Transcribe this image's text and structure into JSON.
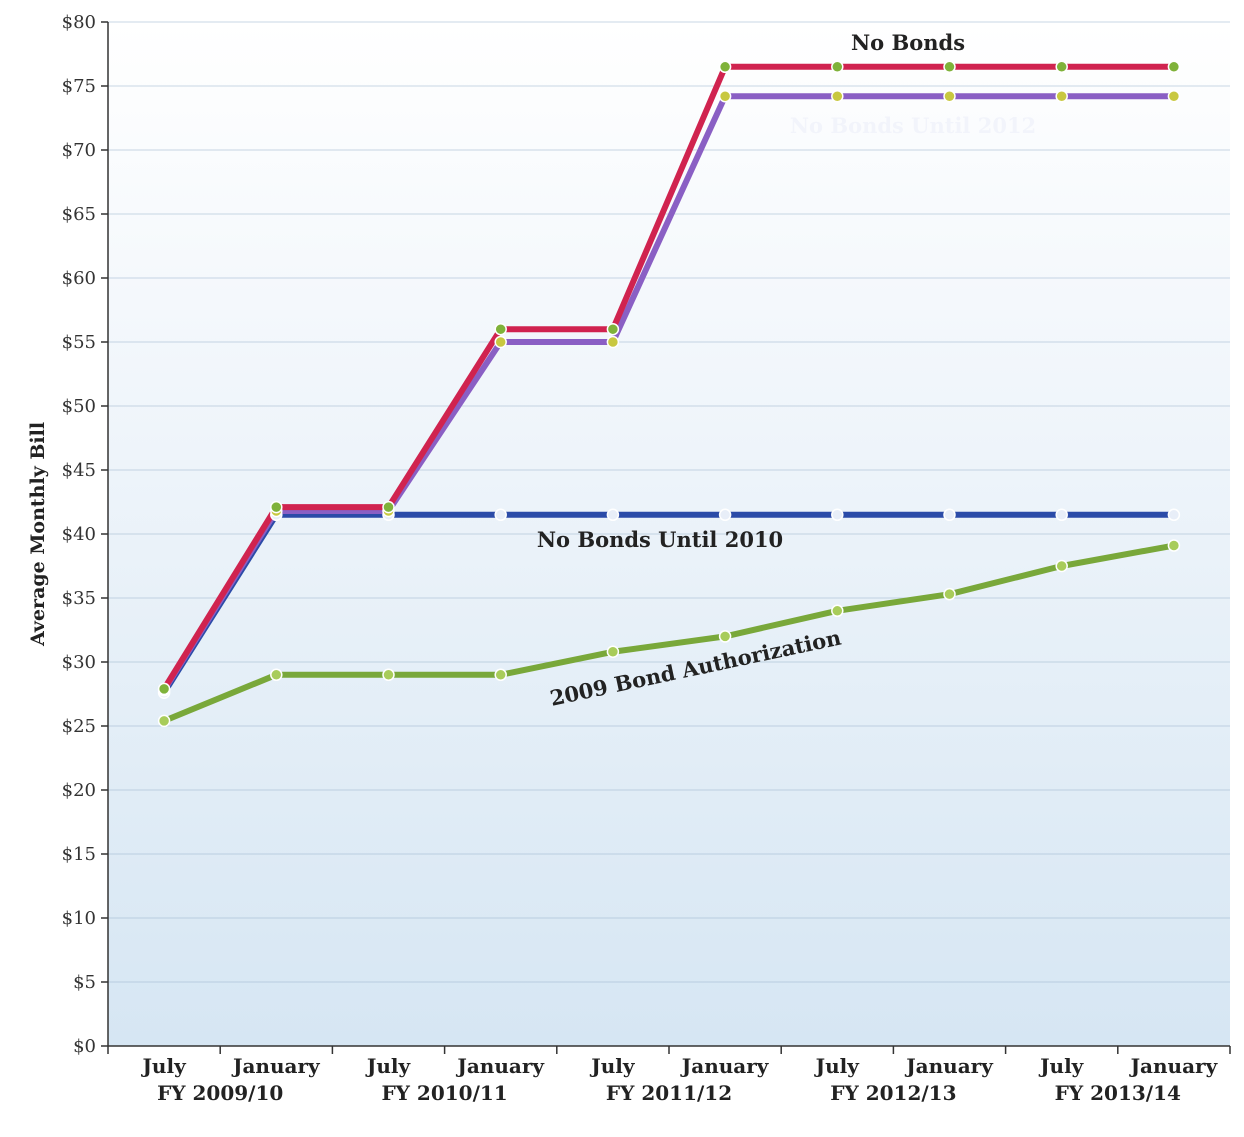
{
  "chart_data": {
    "type": "line",
    "title": "",
    "xlabel": "",
    "ylabel": "Average Monthly Bill",
    "ylim": [
      0,
      80
    ],
    "ytick_step": 5,
    "ytick_prefix": "$",
    "grid": true,
    "categories": [
      "July",
      "January",
      "July",
      "January",
      "July",
      "January",
      "July",
      "January",
      "July",
      "January"
    ],
    "fiscal_years": [
      "FY 2009/10",
      "FY 2010/11",
      "FY 2011/12",
      "FY 2012/13",
      "FY 2013/14"
    ],
    "series": [
      {
        "name": "No Bonds",
        "color": "#d0234f",
        "marker_color": "#7fb23a",
        "values": [
          27.9,
          42.1,
          42.1,
          56.0,
          56.0,
          76.5,
          76.5,
          76.5,
          76.5,
          76.5
        ]
      },
      {
        "name": "No Bonds Until 2012",
        "color": "#8a5fc4",
        "marker_color": "#c8c840",
        "values": [
          27.8,
          41.8,
          41.8,
          55.0,
          55.0,
          74.2,
          74.2,
          74.2,
          74.2,
          74.2
        ]
      },
      {
        "name": "No Bonds Until 2010",
        "color": "#2b4ba8",
        "marker_color": "#e8eef8",
        "values": [
          27.6,
          41.5,
          41.5,
          41.5,
          41.5,
          41.5,
          41.5,
          41.5,
          41.5,
          41.5
        ]
      },
      {
        "name": "2009 Bond Authorization",
        "color": "#79a83a",
        "marker_color": "#a8cc5a",
        "values": [
          25.4,
          29.0,
          29.0,
          29.0,
          30.8,
          32.0,
          34.0,
          35.3,
          37.5,
          39.1
        ]
      }
    ]
  }
}
